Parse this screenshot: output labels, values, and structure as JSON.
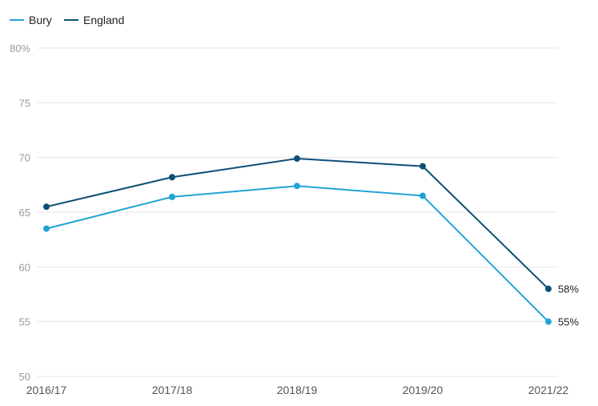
{
  "chart_data": {
    "type": "line",
    "x": [
      "2016/17",
      "2017/18",
      "2018/19",
      "2019/20",
      "2021/22"
    ],
    "series": [
      {
        "name": "Bury",
        "color": "#22a3d6",
        "values": [
          63.5,
          66.4,
          67.4,
          66.5,
          55.0
        ],
        "end_label": "55%"
      },
      {
        "name": "England",
        "color": "#0d4f75",
        "values": [
          65.5,
          68.2,
          69.9,
          69.2,
          58.0
        ],
        "end_label": "58%"
      }
    ],
    "ylim": [
      50,
      80
    ],
    "yticks": [
      "50",
      "55",
      "60",
      "65",
      "70",
      "75",
      "80%"
    ],
    "grid": true,
    "legend": "top-left",
    "title": "",
    "xlabel": "",
    "ylabel": ""
  }
}
